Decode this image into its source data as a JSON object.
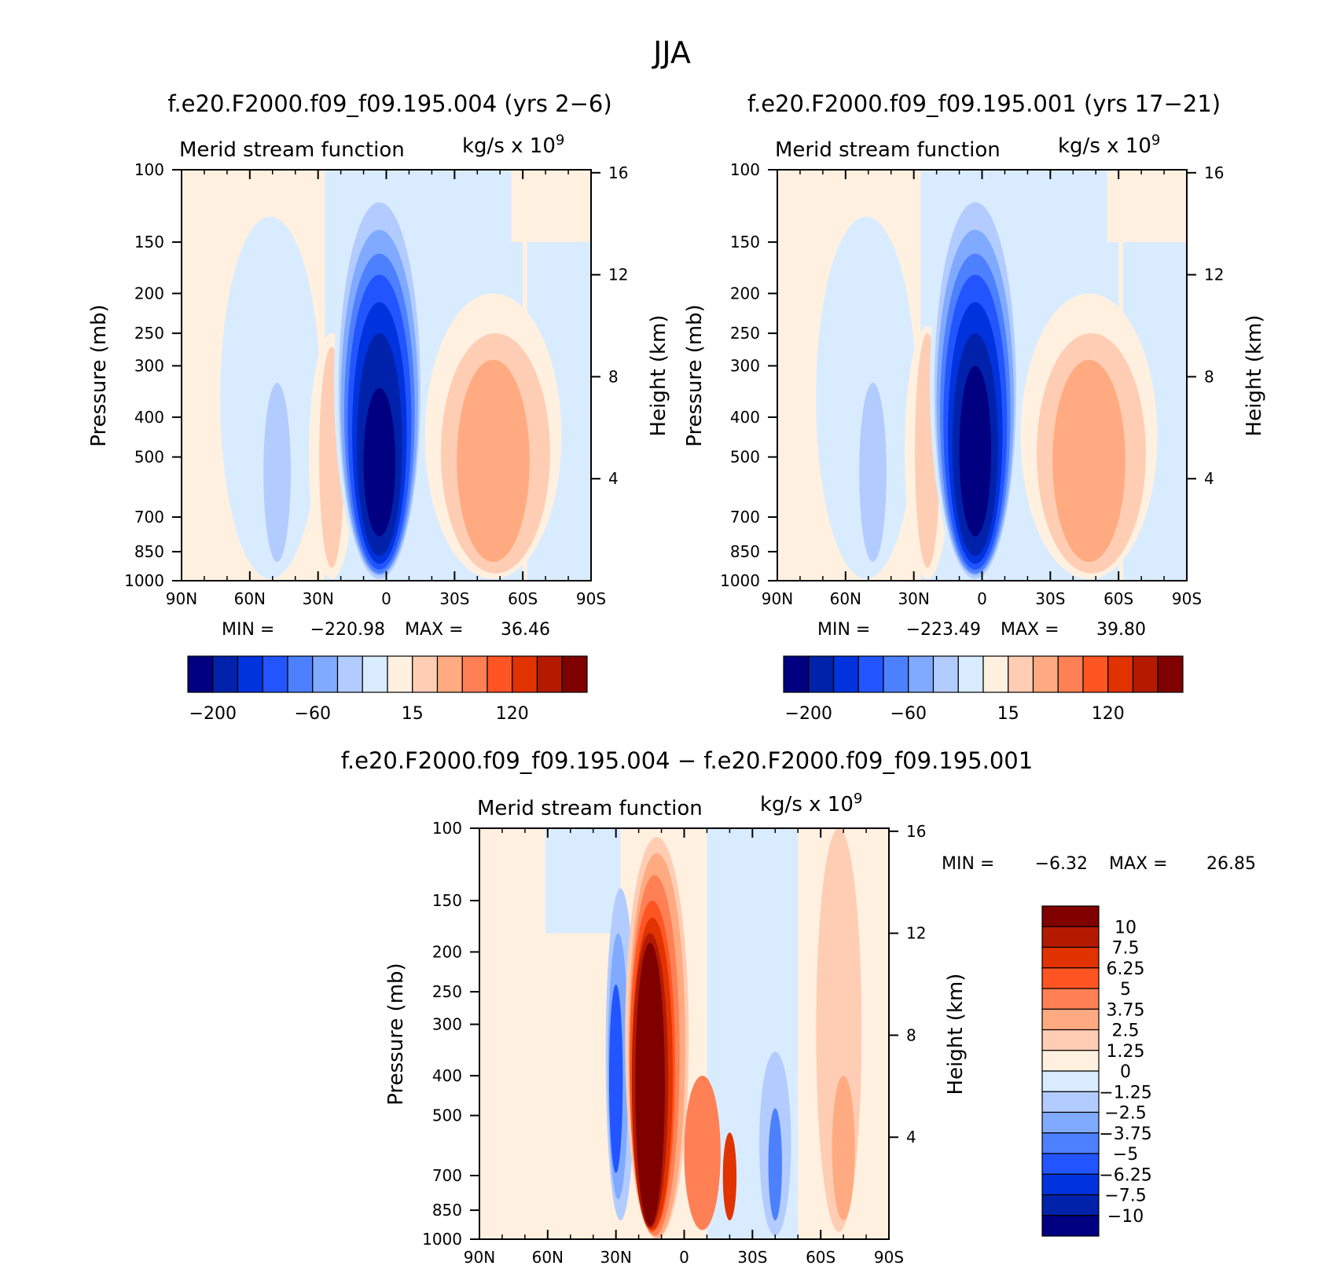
{
  "figure": {
    "title": "JJA"
  },
  "palettes": {
    "full": [
      "#000080",
      "#0022aa",
      "#0033dd",
      "#2255ff",
      "#4d80ff",
      "#80aaff",
      "#b3ccff",
      "#d9ecff",
      "#fff0e0",
      "#ffcdb3",
      "#ffaa80",
      "#ff8055",
      "#ff5522",
      "#e03300",
      "#b31a00",
      "#800000"
    ],
    "diff": [
      "#000080",
      "#0022aa",
      "#0033dd",
      "#2255ff",
      "#4d80ff",
      "#80aaff",
      "#b3ccff",
      "#d9ecff",
      "#fff0e0",
      "#ffcdb3",
      "#ffaa80",
      "#ff8055",
      "#ff5522",
      "#e03300",
      "#b31a00",
      "#800000"
    ]
  },
  "chart_data": [
    {
      "type": "heatmap",
      "title": "f.e20.F2000.f09_f09.195.004 (yrs 2−6)",
      "left_string": "Merid stream function",
      "right_string": "kg/s x 10",
      "right_string_exp": "9",
      "ylabel": "Pressure (mb)",
      "ylabel_right": "Height (km)",
      "x_ticks": [
        "90N",
        "60N",
        "30N",
        "0",
        "30S",
        "60S",
        "90S"
      ],
      "x_values": [
        90,
        60,
        30,
        0,
        -30,
        -60,
        -90
      ],
      "y_ticks": [
        "100",
        "150",
        "200",
        "250",
        "300",
        "400",
        "500",
        "700",
        "850",
        "1000"
      ],
      "y_values": [
        100,
        150,
        200,
        250,
        300,
        400,
        500,
        700,
        850,
        1000
      ],
      "y_right_ticks": [
        "16",
        "12",
        "8",
        "4"
      ],
      "y_right_values": [
        16,
        12,
        8,
        4
      ],
      "stats": {
        "min": "−220.98",
        "max": "36.46"
      },
      "stats_label": {
        "min": "MIN =",
        "max": "MAX ="
      },
      "colorbar_labels": [
        "−200",
        "−60",
        "15",
        "120"
      ],
      "colorbar_label_positions": [
        1,
        5,
        9,
        13
      ],
      "min_value": -220.98,
      "max_value": 36.46,
      "features": [
        {
          "name": "hadley-cell-core",
          "lat": 2,
          "p": 650,
          "level": 0
        },
        {
          "name": "northern-ferrel-weak",
          "lat": 47,
          "p": 500,
          "level": 6
        },
        {
          "name": "southern-positive-cell",
          "lat": -47,
          "p": 500,
          "level": 10
        },
        {
          "name": "subtropical-positive-cell",
          "lat": 24,
          "p": 500,
          "level": 9
        }
      ]
    },
    {
      "type": "heatmap",
      "title": "f.e20.F2000.f09_f09.195.001 (yrs 17−21)",
      "left_string": "Merid stream function",
      "right_string": "kg/s x 10",
      "right_string_exp": "9",
      "ylabel": "Pressure (mb)",
      "ylabel_right": "Height (km)",
      "x_ticks": [
        "90N",
        "60N",
        "30N",
        "0",
        "30S",
        "60S",
        "90S"
      ],
      "x_values": [
        90,
        60,
        30,
        0,
        -30,
        -60,
        -90
      ],
      "y_ticks": [
        "100",
        "150",
        "200",
        "250",
        "300",
        "400",
        "500",
        "700",
        "850",
        "1000"
      ],
      "y_values": [
        100,
        150,
        200,
        250,
        300,
        400,
        500,
        700,
        850,
        1000
      ],
      "y_right_ticks": [
        "16",
        "12",
        "8",
        "4"
      ],
      "y_right_values": [
        16,
        12,
        8,
        4
      ],
      "stats": {
        "min": "−223.49",
        "max": "39.80"
      },
      "stats_label": {
        "min": "MIN =",
        "max": "MAX ="
      },
      "colorbar_labels": [
        "−200",
        "−60",
        "15",
        "120"
      ],
      "colorbar_label_positions": [
        1,
        5,
        9,
        13
      ],
      "min_value": -223.49,
      "max_value": 39.8,
      "features": [
        {
          "name": "hadley-cell-core",
          "lat": 3,
          "p": 500,
          "level": 0
        },
        {
          "name": "northern-ferrel-weak",
          "lat": 47,
          "p": 500,
          "level": 6
        },
        {
          "name": "southern-positive-cell",
          "lat": -45,
          "p": 500,
          "level": 10
        },
        {
          "name": "subtropical-positive-cell",
          "lat": 29,
          "p": 450,
          "level": 9
        }
      ]
    },
    {
      "type": "heatmap",
      "title": "f.e20.F2000.f09_f09.195.004 − f.e20.F2000.f09_f09.195.001",
      "left_string": "Merid stream function",
      "right_string": "kg/s x 10",
      "right_string_exp": "9",
      "ylabel": "Pressure (mb)",
      "ylabel_right": "Height (km)",
      "x_ticks": [
        "90N",
        "60N",
        "30N",
        "0",
        "30S",
        "60S",
        "90S"
      ],
      "x_values": [
        90,
        60,
        30,
        0,
        -30,
        -60,
        -90
      ],
      "y_ticks": [
        "100",
        "150",
        "200",
        "250",
        "300",
        "400",
        "500",
        "700",
        "850",
        "1000"
      ],
      "y_values": [
        100,
        150,
        200,
        250,
        300,
        400,
        500,
        700,
        850,
        1000
      ],
      "y_right_ticks": [
        "16",
        "12",
        "8",
        "4"
      ],
      "y_right_values": [
        16,
        12,
        8,
        4
      ],
      "stats": {
        "min": "−6.32",
        "max": "26.85"
      },
      "stats_label": {
        "min": "MIN =",
        "max": "MAX ="
      },
      "colorbar_labels": [
        "10",
        "7.5",
        "6.25",
        "5",
        "3.75",
        "2.5",
        "1.25",
        "0",
        "−1.25",
        "−2.5",
        "−3.75",
        "−5",
        "−6.25",
        "−7.5",
        "−10"
      ],
      "min_value": -6.32,
      "max_value": 26.85,
      "features": [
        {
          "name": "positive-core",
          "lat": 15,
          "p": 500,
          "level": 15
        },
        {
          "name": "negative-band",
          "lat": 29,
          "p": 400,
          "level": 2
        },
        {
          "name": "southern-negative",
          "lat": -40,
          "p": 550,
          "level": 4
        },
        {
          "name": "southern-positive",
          "lat": -70,
          "p": 500,
          "level": 10
        }
      ]
    }
  ]
}
